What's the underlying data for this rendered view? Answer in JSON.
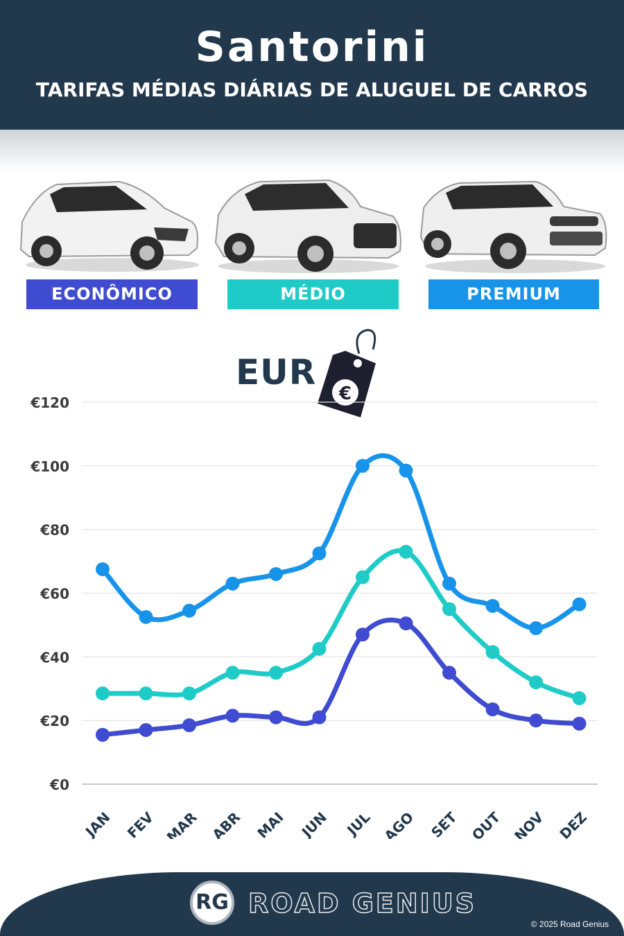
{
  "header": {
    "title": "Santorini",
    "subtitle": "TARIFAS MÉDIAS DIÁRIAS DE ALUGUEL DE CARROS"
  },
  "categories": {
    "economy": "ECONÔMICO",
    "medium": "MÉDIO",
    "premium": "PREMIUM"
  },
  "currency": {
    "label": "EUR",
    "icon": "euro-price-tag-icon"
  },
  "colors": {
    "header_bg": "#22384c",
    "economy": "#3f4bd0",
    "medium": "#1fcbc7",
    "premium": "#1794ea",
    "axis_text": "#3b3b3b"
  },
  "chart_data": {
    "type": "line",
    "categories": [
      "JAN",
      "FEV",
      "MAR",
      "ABR",
      "MAI",
      "JUN",
      "JUL",
      "AGO",
      "SET",
      "OUT",
      "NOV",
      "DEZ"
    ],
    "series": [
      {
        "name": "PREMIUM",
        "color": "#1794ea",
        "values": [
          67.5,
          52.5,
          54.5,
          63,
          66,
          72.5,
          100,
          98.5,
          63,
          56,
          49,
          56.5
        ]
      },
      {
        "name": "MÉDIO",
        "color": "#1fcbc7",
        "values": [
          28.5,
          28.5,
          28.5,
          35,
          35,
          42.5,
          65,
          73,
          55,
          41.5,
          32,
          27
        ]
      },
      {
        "name": "ECONÔMICO",
        "color": "#3f4bd0",
        "values": [
          15.5,
          17,
          18.5,
          21.5,
          21,
          21,
          47,
          50.5,
          35,
          23.5,
          20,
          19
        ]
      }
    ],
    "yticks": [
      "€0",
      "€20",
      "€40",
      "€60",
      "€80",
      "€100",
      "€120"
    ],
    "ylim": [
      0,
      120
    ],
    "grid": true,
    "legend": "top",
    "title": "",
    "xlabel": "",
    "ylabel": ""
  },
  "footer": {
    "logo": "RG",
    "brand": "ROAD GENIUS",
    "copyright": "© 2025 Road Genius"
  }
}
